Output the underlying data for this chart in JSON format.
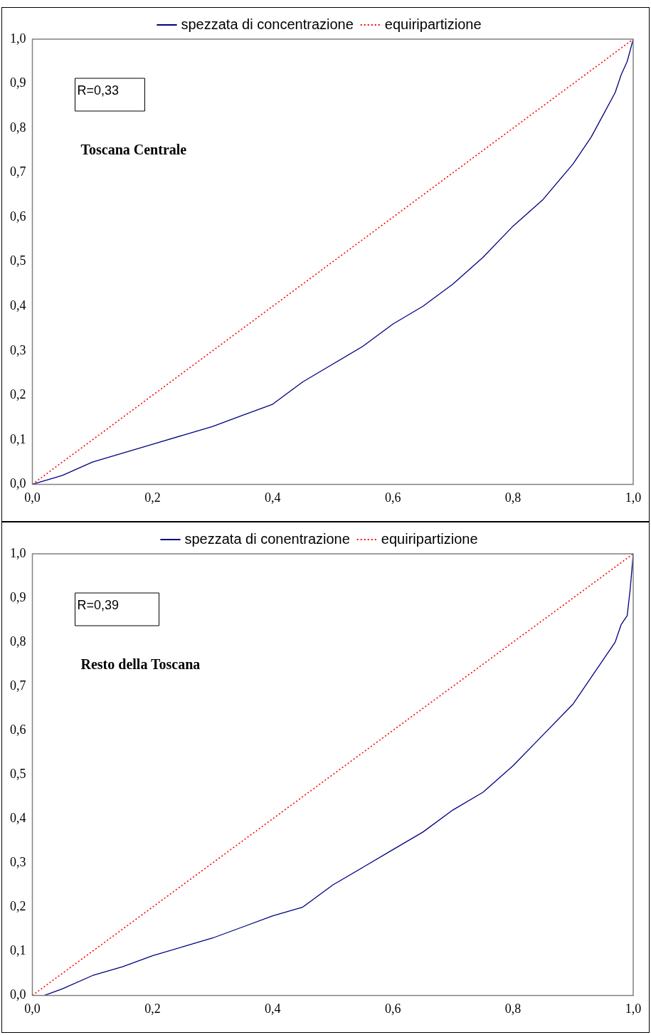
{
  "chart_data": [
    {
      "type": "line",
      "legend": "top",
      "marker": "none",
      "xlim": [
        0,
        1
      ],
      "ylim": [
        0,
        1
      ],
      "xticks": [
        {
          "value": 0,
          "label": "0,0"
        },
        {
          "value": 0.2,
          "label": "0,2"
        },
        {
          "value": 0.4,
          "label": "0,4"
        },
        {
          "value": 0.6,
          "label": "0,6"
        },
        {
          "value": 0.8,
          "label": "0,8"
        },
        {
          "value": 1,
          "label": "1,0"
        }
      ],
      "yticks": [
        {
          "value": 0,
          "label": "0,0"
        },
        {
          "value": 0.1,
          "label": "0,1"
        },
        {
          "value": 0.2,
          "label": "0,2"
        },
        {
          "value": 0.3,
          "label": "0,3"
        },
        {
          "value": 0.4,
          "label": "0,4"
        },
        {
          "value": 0.5,
          "label": "0,5"
        },
        {
          "value": 0.6,
          "label": "0,6"
        },
        {
          "value": 0.7,
          "label": "0,7"
        },
        {
          "value": 0.8,
          "label": "0,8"
        },
        {
          "value": 0.9,
          "label": "0,9"
        },
        {
          "value": 1,
          "label": "1,0"
        }
      ],
      "annotations": [
        "R=0,33",
        "Toscana Centrale"
      ],
      "series": [
        {
          "name": "spezzata di concentrazione",
          "color": "#000080",
          "line_style": "solid",
          "x": [
            0,
            0.05,
            0.1,
            0.15,
            0.2,
            0.25,
            0.3,
            0.35,
            0.38,
            0.4,
            0.45,
            0.5,
            0.55,
            0.6,
            0.65,
            0.7,
            0.75,
            0.8,
            0.85,
            0.9,
            0.93,
            0.95,
            0.97,
            0.98,
            0.99,
            1
          ],
          "values": [
            0,
            0.02,
            0.05,
            0.07,
            0.09,
            0.11,
            0.13,
            0.155,
            0.17,
            0.18,
            0.23,
            0.27,
            0.31,
            0.36,
            0.4,
            0.45,
            0.51,
            0.58,
            0.64,
            0.72,
            0.78,
            0.83,
            0.88,
            0.92,
            0.95,
            1
          ]
        },
        {
          "name": "equiripartizione",
          "color": "#ff0000",
          "line_style": "dotted",
          "x": [
            0,
            1
          ],
          "values": [
            0,
            1
          ]
        }
      ]
    },
    {
      "type": "line",
      "legend": "top",
      "marker": "none",
      "xlim": [
        0,
        1
      ],
      "ylim": [
        0,
        1
      ],
      "xticks": [
        {
          "value": 0,
          "label": "0,0"
        },
        {
          "value": 0.2,
          "label": "0,2"
        },
        {
          "value": 0.4,
          "label": "0,4"
        },
        {
          "value": 0.6,
          "label": "0,6"
        },
        {
          "value": 0.8,
          "label": "0,8"
        },
        {
          "value": 1,
          "label": "1,0"
        }
      ],
      "yticks": [
        {
          "value": 0,
          "label": "0,0"
        },
        {
          "value": 0.1,
          "label": "0,1"
        },
        {
          "value": 0.2,
          "label": "0,2"
        },
        {
          "value": 0.3,
          "label": "0,3"
        },
        {
          "value": 0.4,
          "label": "0,4"
        },
        {
          "value": 0.5,
          "label": "0,5"
        },
        {
          "value": 0.6,
          "label": "0,6"
        },
        {
          "value": 0.7,
          "label": "0,7"
        },
        {
          "value": 0.8,
          "label": "0,8"
        },
        {
          "value": 0.9,
          "label": "0,9"
        },
        {
          "value": 1,
          "label": "1,0"
        }
      ],
      "annotations": [
        "R=0,39",
        "Resto della Toscana"
      ],
      "series": [
        {
          "name": "spezzata di conentrazione",
          "color": "#000080",
          "line_style": "solid",
          "x": [
            0.02,
            0.05,
            0.1,
            0.15,
            0.2,
            0.25,
            0.3,
            0.35,
            0.4,
            0.45,
            0.5,
            0.55,
            0.6,
            0.65,
            0.7,
            0.75,
            0.8,
            0.85,
            0.9,
            0.93,
            0.95,
            0.97,
            0.98,
            0.99,
            0.995,
            1
          ],
          "values": [
            0,
            0.015,
            0.045,
            0.065,
            0.09,
            0.11,
            0.13,
            0.155,
            0.18,
            0.2,
            0.25,
            0.29,
            0.33,
            0.37,
            0.42,
            0.46,
            0.52,
            0.59,
            0.66,
            0.72,
            0.76,
            0.8,
            0.84,
            0.86,
            0.92,
            1
          ]
        },
        {
          "name": "equiripartizione",
          "color": "#ff0000",
          "line_style": "dotted",
          "x": [
            0,
            1
          ],
          "values": [
            0,
            1
          ]
        }
      ]
    }
  ]
}
